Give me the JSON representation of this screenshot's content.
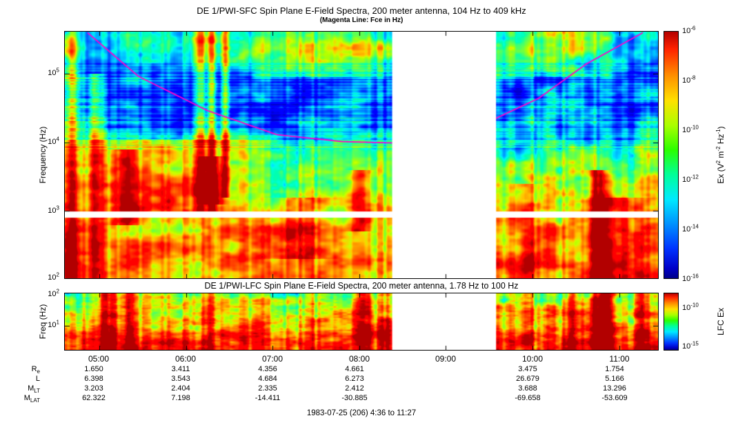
{
  "figure": {
    "footer": "1983-07-25 (206) 4:36 to 11:27"
  },
  "chart_data": [
    {
      "type": "heatmap",
      "id": "sfc-spectrogram",
      "title": "DE 1/PWI-SFC  Spin Plane E-Field Spectra, 200 meter antenna, 104 Hz to 409 kHz",
      "subtitle": "(Magenta Line: Fce in Hz)",
      "ylabel": "Frequency (Hz)",
      "x_range_hours": [
        4.6,
        11.45
      ],
      "x_tick_labels": [
        "05:00",
        "06:00",
        "07:00",
        "08:00",
        "09:00",
        "10:00",
        "11:00"
      ],
      "y_log_range": [
        2.017,
        5.612
      ],
      "y_tick_labels": [
        "1e5",
        "1e4",
        "1e3",
        "1e2"
      ],
      "colorbar": {
        "label": "Ex (V^2 m^-2 Hz^-1)",
        "tick_labels": [
          "1e-6",
          "1e-8",
          "1e-10",
          "1e-12",
          "1e-14",
          "1e-16"
        ],
        "log_range": [
          -16,
          -6
        ]
      },
      "data_gap_hours": [
        8.38,
        9.58
      ],
      "white_band_log_freq": [
        2.9,
        2.99
      ],
      "fce_color": "#ff00cc",
      "fce_line_points": [
        [
          4.6,
          6.05
        ],
        [
          4.85,
          5.61
        ],
        [
          5.45,
          4.96
        ],
        [
          6.25,
          4.46
        ],
        [
          7.05,
          4.11
        ],
        [
          7.8,
          4.01
        ],
        [
          8.38,
          3.99
        ],
        [
          9.58,
          4.35
        ],
        [
          10.07,
          4.64
        ],
        [
          10.62,
          5.14
        ],
        [
          11.25,
          5.58
        ],
        [
          11.45,
          5.75
        ]
      ]
    },
    {
      "type": "heatmap",
      "id": "lfc-spectrogram",
      "title": "DE 1/PWI-LFC  Spin Plane E-Field Spectra, 200 meter antenna, 1.78 Hz to 100 Hz",
      "ylabel": "Freq (Hz)",
      "x_range_hours": [
        4.6,
        11.45
      ],
      "y_log_range": [
        0.25,
        2.0
      ],
      "y_tick_labels": [
        "1e2",
        "1e1"
      ],
      "colorbar": {
        "label": "LFC Ex",
        "tick_labels": [
          "1e-10",
          "1e-15"
        ],
        "log_range": [
          -15,
          -10
        ]
      },
      "data_gap_hours": [
        8.38,
        9.58
      ]
    }
  ],
  "ticks": {
    "time": [
      "05:00",
      "06:00",
      "07:00",
      "08:00",
      "09:00",
      "10:00",
      "11:00"
    ],
    "sfc_y": [
      {
        "b": "10",
        "e": "5"
      },
      {
        "b": "10",
        "e": "4"
      },
      {
        "b": "10",
        "e": "3"
      },
      {
        "b": "10",
        "e": "2"
      }
    ],
    "sfc_cbar": [
      {
        "b": "10",
        "e": "-6"
      },
      {
        "b": "10",
        "e": "-8"
      },
      {
        "b": "10",
        "e": "-10"
      },
      {
        "b": "10",
        "e": "-12"
      },
      {
        "b": "10",
        "e": "-14"
      },
      {
        "b": "10",
        "e": "-16"
      }
    ],
    "lfc_y": [
      {
        "b": "10",
        "e": "2"
      },
      {
        "b": "10",
        "e": "1"
      }
    ],
    "lfc_cbar": [
      {
        "b": "10",
        "e": "-10"
      },
      {
        "b": "10",
        "e": "-15"
      }
    ]
  },
  "labels": {
    "sfc_cbar": {
      "t1": "Ex (V",
      "e1": "2",
      "t2": " m",
      "e2": "-2",
      "t3": " Hz",
      "e3": "-1",
      "t4": ")"
    },
    "lfc_cbar": "LFC Ex"
  },
  "ephemeris": {
    "columns": [
      "05:00",
      "06:00",
      "07:00",
      "08:00",
      "10:00",
      "11:00"
    ],
    "rows": [
      {
        "label": "R",
        "sub": "e",
        "values": [
          "1.650",
          "3.411",
          "4.356",
          "4.661",
          "3.475",
          "1.754"
        ]
      },
      {
        "label": "L",
        "sub": "",
        "values": [
          "6.398",
          "3.543",
          "4.684",
          "6.273",
          "26.679",
          "5.166"
        ]
      },
      {
        "label": "M",
        "sub": "LT",
        "values": [
          "3.203",
          "2.404",
          "2.335",
          "2.412",
          "3.688",
          "13.296"
        ]
      },
      {
        "label": "M",
        "sub": "LAT",
        "values": [
          "62.322",
          "7.198",
          "-14.411",
          "-30.885",
          "-69.658",
          "-53.609"
        ]
      }
    ]
  }
}
